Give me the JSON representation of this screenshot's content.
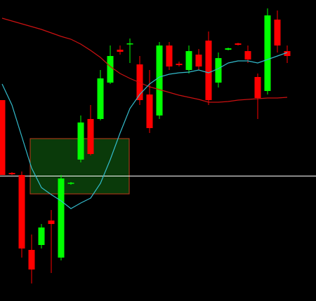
{
  "chart_data": {
    "type": "candlestick",
    "categories": [
      null,
      null,
      null,
      null,
      null,
      null,
      null,
      null,
      null,
      null,
      null,
      null,
      null,
      null,
      null,
      null,
      null,
      null,
      null,
      null,
      null,
      null,
      null,
      null,
      null,
      null,
      null,
      null,
      null,
      null
    ],
    "open": [
      287,
      183,
      180,
      73,
      80,
      115,
      62,
      168,
      202,
      260,
      260,
      312,
      359,
      367,
      338,
      295,
      265,
      365,
      339,
      330,
      352,
      372,
      312,
      359,
      368,
      357,
      320,
      300,
      402,
      357
    ],
    "high": [
      287,
      184,
      185,
      95,
      110,
      130,
      180,
      170,
      265,
      280,
      330,
      365,
      365,
      375,
      350,
      330,
      370,
      370,
      342,
      365,
      360,
      385,
      355,
      362,
      369,
      365,
      325,
      418,
      415,
      365
    ],
    "low": [
      180,
      180,
      62,
      25,
      75,
      40,
      58,
      166,
      198,
      208,
      258,
      310,
      352,
      340,
      280,
      240,
      260,
      330,
      335,
      325,
      330,
      280,
      305,
      358,
      365,
      340,
      260,
      295,
      355,
      340
    ],
    "close": [
      180,
      181,
      75,
      45,
      105,
      110,
      175,
      169,
      255,
      210,
      318,
      350,
      356,
      368,
      287,
      247,
      365,
      335,
      337,
      357,
      335,
      287,
      347,
      361,
      366,
      345,
      290,
      408,
      365,
      350
    ],
    "up_color": "#00ff00",
    "down_color": "#ff0000",
    "lines": [
      {
        "color": "#cc1111",
        "values": [
          404,
          400,
          396,
          392,
          388,
          383,
          378,
          374,
          367,
          358,
          348,
          335,
          325,
          318,
          312,
          306,
          302,
          298,
          294,
          291,
          288,
          284,
          284,
          285,
          287,
          288,
          289,
          290,
          290,
          291
        ]
      },
      {
        "color": "#33bbcc",
        "values": [
          310,
          280,
          235,
          190,
          162,
          152,
          143,
          132,
          140,
          147,
          168,
          202,
          240,
          275,
          295,
          310,
          320,
          324,
          326,
          327,
          330,
          326,
          332,
          340,
          343,
          343,
          340,
          345,
          350,
          355
        ]
      }
    ],
    "ylim": [
      0,
      430
    ]
  }
}
